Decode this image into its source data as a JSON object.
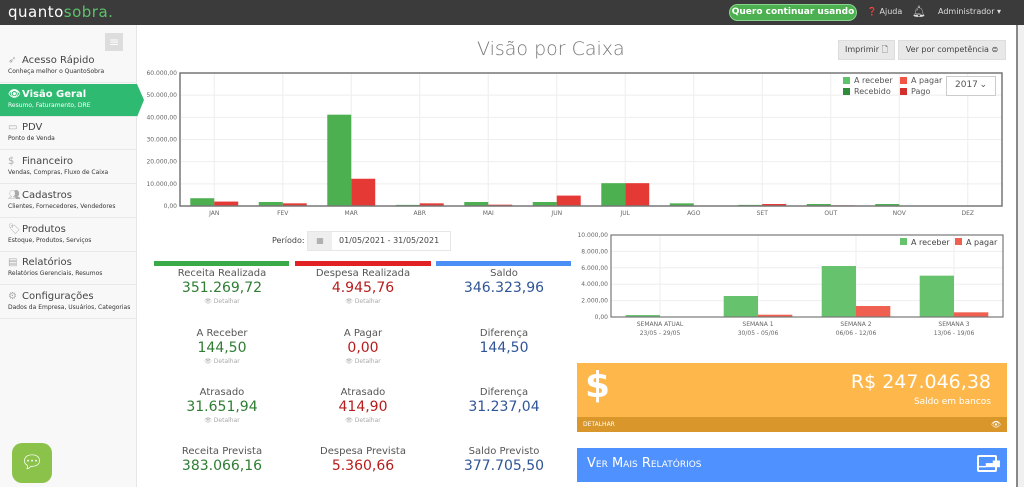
{
  "topbar": {
    "logo_a": "quanto",
    "logo_b": "sobra.",
    "cta": "Quero continuar usando",
    "help": "Ajuda",
    "user": "Administrador"
  },
  "sidebar": {
    "items": [
      {
        "label": "Acesso Rápido",
        "sub": "Conheça melhor o QuantoSobra",
        "icon": "rocket-icon"
      },
      {
        "label": "Visão Geral",
        "sub": "Resumo, Faturamento, DRE",
        "icon": "eye-icon",
        "active": true
      },
      {
        "label": "PDV",
        "sub": "Ponto de Venda",
        "icon": "monitor-icon"
      },
      {
        "label": "Financeiro",
        "sub": "Vendas, Compras, Fluxo de Caixa",
        "icon": "dollar-icon"
      },
      {
        "label": "Cadastros",
        "sub": "Clientes, Fornecedores, Vendedores",
        "icon": "users-icon"
      },
      {
        "label": "Produtos",
        "sub": "Estoque, Produtos, Serviços",
        "icon": "tags-icon"
      },
      {
        "label": "Relatórios",
        "sub": "Relatórios Gerenciais, Resumos",
        "icon": "chart-icon"
      },
      {
        "label": "Configurações",
        "sub": "Dados da Empresa, Usuários, Categorias",
        "icon": "gear-icon"
      }
    ]
  },
  "page": {
    "title": "Visão por Caixa",
    "print": "Imprimir",
    "competencia": "Ver por competência"
  },
  "chart_data": [
    {
      "type": "bar",
      "ylim": [
        0,
        60000
      ],
      "yticks": [
        "0,00",
        "10.000,00",
        "20.000,00",
        "30.000,00",
        "40.000,00",
        "50.000,00",
        "60.000,00"
      ],
      "categories": [
        "JAN",
        "FEV",
        "MAR",
        "ABR",
        "MAI",
        "JUN",
        "JUL",
        "AGO",
        "SET",
        "OUT",
        "NOV",
        "DEZ"
      ],
      "series": [
        {
          "name": "Recebido",
          "color": "#4caf50",
          "values": [
            3500,
            1800,
            41200,
            500,
            1800,
            1800,
            10300,
            1200,
            500,
            900,
            900,
            150
          ]
        },
        {
          "name": "Pago",
          "color": "#e53935",
          "values": [
            2000,
            1200,
            12300,
            1200,
            600,
            4700,
            10300,
            0,
            900,
            300,
            0,
            0
          ]
        }
      ],
      "legend": [
        "A receber",
        "A pagar",
        "Recebido",
        "Pago"
      ],
      "legend_position": "top-right",
      "year": "2017",
      "grid": true
    },
    {
      "type": "bar",
      "ylim": [
        0,
        10000
      ],
      "yticks": [
        "0,00",
        "2.000,00",
        "4.000,00",
        "6.000,00",
        "8.000,00",
        "10.000,00"
      ],
      "categories": [
        "SEMANA ATUAL",
        "SEMANA 1",
        "SEMANA 2",
        "SEMANA 3"
      ],
      "subcategories": [
        "23/05 - 29/05",
        "30/05 - 05/06",
        "06/06 - 12/06",
        "13/06 - 19/06"
      ],
      "series": [
        {
          "name": "A receber",
          "color": "#66c26d",
          "values": [
            240,
            2560,
            6220,
            5040
          ]
        },
        {
          "name": "A pagar",
          "color": "#ef6050",
          "values": [
            0,
            280,
            1340,
            570
          ]
        }
      ],
      "legend_position": "top-right",
      "grid": true
    }
  ],
  "period": {
    "label": "Período:",
    "value": "01/05/2021 - 31/05/2021"
  },
  "summary": [
    {
      "label": "Receita Realizada",
      "value": "351.269,72",
      "detail": "Detalhar",
      "color": "#2e7d32"
    },
    {
      "label": "Despesa Realizada",
      "value": "4.945,76",
      "detail": "Detalhar",
      "color": "#b71c1c"
    },
    {
      "label": "Saldo",
      "value": "346.323,96",
      "color": "#2f5597"
    },
    {
      "label": "A Receber",
      "value": "144,50",
      "detail": "Detalhar",
      "color": "#2e7d32"
    },
    {
      "label": "A Pagar",
      "value": "0,00",
      "detail": "Detalhar",
      "color": "#b71c1c"
    },
    {
      "label": "Diferença",
      "value": "144,50",
      "color": "#2f5597"
    },
    {
      "label": "Atrasado",
      "value": "31.651,94",
      "detail": "Detalhar",
      "color": "#2e7d32"
    },
    {
      "label": "Atrasado",
      "value": "414,90",
      "detail": "Detalhar",
      "color": "#b71c1c"
    },
    {
      "label": "Diferença",
      "value": "31.237,04",
      "color": "#2f5597"
    },
    {
      "label": "Receita Prevista",
      "value": "383.066,16",
      "color": "#2e7d32"
    },
    {
      "label": "Despesa Prevista",
      "value": "5.360,66",
      "color": "#b71c1c"
    },
    {
      "label": "Saldo Previsto",
      "value": "377.705,50",
      "color": "#2f5597"
    }
  ],
  "bank": {
    "amount": "R$ 247.046,38",
    "label": "Saldo em bancos",
    "detail": "DETALHAR"
  },
  "reports": {
    "label": "Ver Mais Relatórios"
  }
}
